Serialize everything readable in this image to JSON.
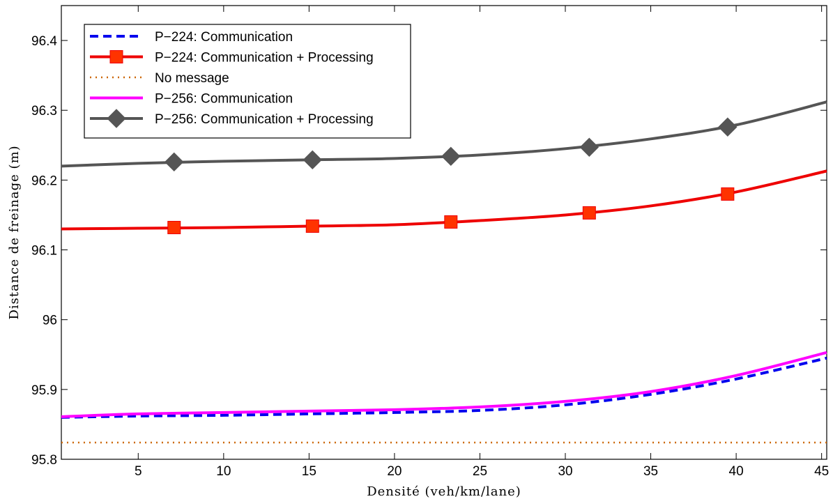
{
  "chart_data": {
    "type": "line",
    "title": "",
    "xlabel": "Densité (veh/km/lane)",
    "ylabel": "Distance de freinage (m)",
    "xlim": [
      0.5,
      45.3
    ],
    "ylim": [
      95.8,
      96.45
    ],
    "xticks": [
      5,
      10,
      15,
      20,
      25,
      30,
      35,
      40,
      45
    ],
    "yticks": [
      95.8,
      95.9,
      96,
      96.1,
      96.2,
      96.3,
      96.4
    ],
    "ytick_labels": [
      "95.8",
      "95.9",
      "96",
      "96.1",
      "96.2",
      "96.3",
      "96.4"
    ],
    "grid": false,
    "legend_position": "top-left",
    "series": [
      {
        "name": "P−224: Communication",
        "color": "#0000ee",
        "style": "dashed",
        "marker": "none",
        "x": [
          0.5,
          5,
          10,
          15,
          20,
          25,
          30,
          35,
          40,
          45.3
        ],
        "y": [
          95.86,
          95.862,
          95.863,
          95.865,
          95.867,
          95.87,
          95.878,
          95.893,
          95.915,
          95.945
        ]
      },
      {
        "name": "P−224: Communication + Processing",
        "color": "#ee0000",
        "style": "solid",
        "marker": "square",
        "marker_color": "#ff3300",
        "x": [
          0.5,
          5,
          10,
          15,
          20,
          25,
          30,
          35,
          40,
          45.3
        ],
        "y": [
          96.13,
          96.131,
          96.132,
          96.134,
          96.136,
          96.142,
          96.15,
          96.163,
          96.183,
          96.213
        ],
        "marker_x": [
          7.1,
          15.2,
          23.3,
          31.4,
          39.5
        ],
        "marker_y": [
          96.132,
          96.134,
          96.14,
          96.153,
          96.18
        ]
      },
      {
        "name": "No message",
        "color": "#cc6600",
        "style": "dotted",
        "marker": "none",
        "x": [
          0.5,
          45.3
        ],
        "y": [
          95.824,
          95.824
        ]
      },
      {
        "name": "P−256: Communication",
        "color": "#ff00ff",
        "style": "solid",
        "marker": "none",
        "x": [
          0.5,
          5,
          10,
          15,
          20,
          25,
          30,
          35,
          40,
          45.3
        ],
        "y": [
          95.861,
          95.865,
          95.867,
          95.869,
          95.871,
          95.875,
          95.883,
          95.897,
          95.92,
          95.953
        ]
      },
      {
        "name": "P−256: Communication + Processing",
        "color": "#555555",
        "style": "solid",
        "marker": "diamond",
        "marker_color": "#555555",
        "x": [
          0.5,
          5,
          10,
          15,
          20,
          25,
          30,
          35,
          40,
          45.3
        ],
        "y": [
          96.22,
          96.224,
          96.227,
          96.229,
          96.231,
          96.236,
          96.245,
          96.259,
          96.279,
          96.312
        ],
        "marker_x": [
          7.1,
          15.2,
          23.3,
          31.4,
          39.5
        ],
        "marker_y": [
          96.226,
          96.229,
          96.234,
          96.247,
          96.276
        ]
      }
    ]
  }
}
